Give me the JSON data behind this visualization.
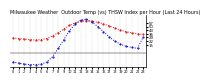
{
  "title": "Milwaukee Weather  Outdoor Temp (vs) THSW Index per Hour (Last 24 Hours)",
  "hours": [
    0,
    1,
    2,
    3,
    4,
    5,
    6,
    7,
    8,
    9,
    10,
    11,
    12,
    13,
    14,
    15,
    16,
    17,
    18,
    19,
    20,
    21,
    22,
    23
  ],
  "temp": [
    28,
    27,
    26,
    25,
    24,
    25,
    27,
    32,
    38,
    45,
    52,
    57,
    60,
    61,
    60,
    58,
    55,
    51,
    47,
    43,
    40,
    38,
    36,
    35
  ],
  "thsw": [
    -18,
    -20,
    -22,
    -23,
    -23,
    -22,
    -18,
    -8,
    8,
    25,
    42,
    55,
    62,
    64,
    58,
    50,
    40,
    30,
    22,
    16,
    12,
    10,
    8,
    30
  ],
  "temp_color": "#dd0000",
  "thsw_color": "#0000cc",
  "bg_color": "#ffffff",
  "grid_color": "#aaaaaa",
  "ylim_min": -28,
  "ylim_max": 72,
  "ytick_labels": [
    "57",
    "50",
    "43",
    "36",
    "29",
    "22",
    "15"
  ],
  "ytick_values": [
    57,
    50,
    43,
    36,
    29,
    22,
    15
  ],
  "title_fontsize": 3.5,
  "tick_fontsize": 2.8,
  "line_width": 0.7,
  "marker_size": 1.0
}
